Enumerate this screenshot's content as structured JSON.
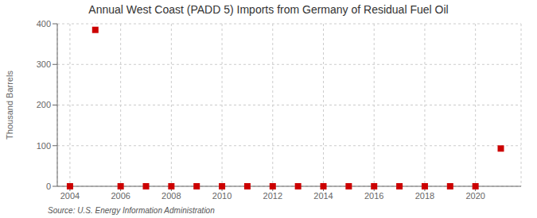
{
  "chart_data": {
    "type": "scatter",
    "title": "Annual West Coast (PADD 5) Imports from Germany of Residual Fuel Oil",
    "ylabel": "Thousand Barrels",
    "annotation": "Source: U.S. Energy Information Administration",
    "x": [
      2004,
      2005,
      2006,
      2007,
      2008,
      2009,
      2010,
      2011,
      2012,
      2013,
      2014,
      2015,
      2016,
      2017,
      2018,
      2019,
      2020,
      2021
    ],
    "values": [
      0,
      385,
      0,
      0,
      0,
      0,
      0,
      0,
      0,
      0,
      0,
      0,
      0,
      0,
      0,
      0,
      0,
      93
    ],
    "color": "#cc0000",
    "marker": "square",
    "xlim": [
      2003.5,
      2021.8
    ],
    "xticks": [
      2004,
      2006,
      2008,
      2010,
      2012,
      2014,
      2016,
      2018,
      2020
    ],
    "ylim": [
      0,
      400
    ],
    "yticks": [
      0,
      100,
      200,
      300,
      400
    ],
    "grid": true
  }
}
